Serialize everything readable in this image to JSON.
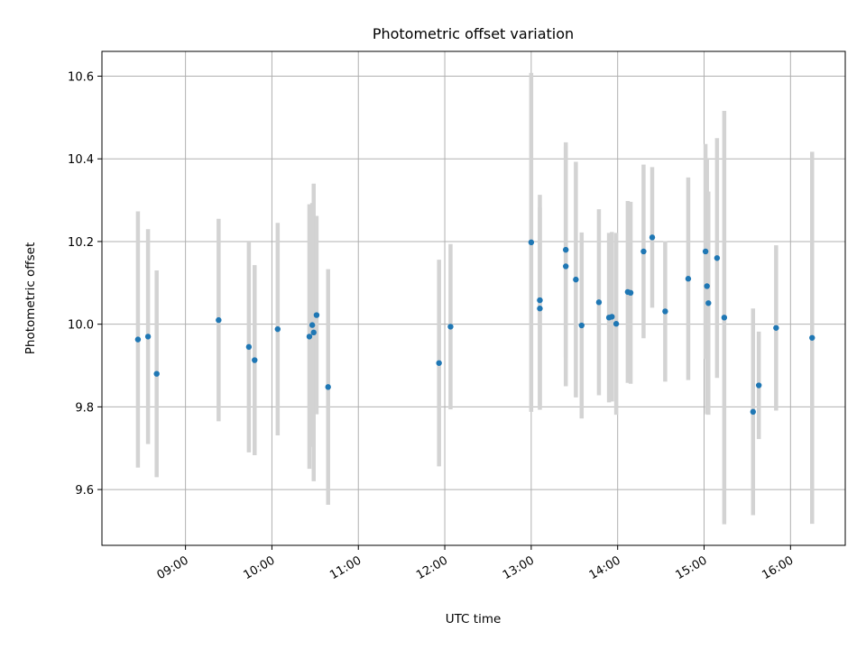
{
  "chart_data": {
    "type": "scatter",
    "title": "Photometric offset variation",
    "xlabel": "UTC time",
    "ylabel": "Photometric offset",
    "x_ticks": [
      "09:00",
      "10:00",
      "11:00",
      "12:00",
      "13:00",
      "14:00",
      "15:00",
      "16:00"
    ],
    "y_ticks": [
      "9.6",
      "9.8",
      "10.0",
      "10.2",
      "10.4",
      "10.6"
    ],
    "xlim": [
      "08:02",
      "16:38"
    ],
    "ylim": [
      9.465,
      10.66
    ],
    "grid": true,
    "colors": {
      "point": "#1f77b4",
      "errorbar": "#d3d3d3",
      "grid": "#b0b0b0",
      "axes": "#000000"
    },
    "points": [
      {
        "t": "08:27",
        "y": 9.963,
        "err": 0.31
      },
      {
        "t": "08:34",
        "y": 9.97,
        "err": 0.26
      },
      {
        "t": "08:40",
        "y": 9.88,
        "err": 0.25
      },
      {
        "t": "09:23",
        "y": 10.01,
        "err": 0.245
      },
      {
        "t": "09:44",
        "y": 9.945,
        "err": 0.255
      },
      {
        "t": "09:48",
        "y": 9.913,
        "err": 0.23
      },
      {
        "t": "10:04",
        "y": 9.988,
        "err": 0.257
      },
      {
        "t": "10:26",
        "y": 9.97,
        "err": 0.32
      },
      {
        "t": "10:28",
        "y": 9.998,
        "err": 0.295
      },
      {
        "t": "10:29",
        "y": 9.98,
        "err": 0.36
      },
      {
        "t": "10:31",
        "y": 10.022,
        "err": 0.24
      },
      {
        "t": "10:39",
        "y": 9.848,
        "err": 0.285
      },
      {
        "t": "11:56",
        "y": 9.906,
        "err": 0.25
      },
      {
        "t": "12:04",
        "y": 9.994,
        "err": 0.2
      },
      {
        "t": "13:00",
        "y": 10.198,
        "err": 0.41
      },
      {
        "t": "13:06",
        "y": 10.038,
        "err": 0.245
      },
      {
        "t": "13:06",
        "y": 10.058,
        "err": 0.255
      },
      {
        "t": "13:24",
        "y": 10.14,
        "err": 0.29
      },
      {
        "t": "13:24",
        "y": 10.18,
        "err": 0.26
      },
      {
        "t": "13:31",
        "y": 10.108,
        "err": 0.285
      },
      {
        "t": "13:35",
        "y": 9.997,
        "err": 0.225
      },
      {
        "t": "13:47",
        "y": 10.053,
        "err": 0.225
      },
      {
        "t": "13:54",
        "y": 10.016,
        "err": 0.205
      },
      {
        "t": "13:56",
        "y": 10.018,
        "err": 0.205
      },
      {
        "t": "13:59",
        "y": 10.001,
        "err": 0.22
      },
      {
        "t": "14:07",
        "y": 10.078,
        "err": 0.22
      },
      {
        "t": "14:09",
        "y": 10.076,
        "err": 0.22
      },
      {
        "t": "14:18",
        "y": 10.176,
        "err": 0.21
      },
      {
        "t": "14:24",
        "y": 10.21,
        "err": 0.17
      },
      {
        "t": "14:33",
        "y": 10.031,
        "err": 0.17
      },
      {
        "t": "14:49",
        "y": 10.11,
        "err": 0.245
      },
      {
        "t": "15:01",
        "y": 10.176,
        "err": 0.26
      },
      {
        "t": "15:02",
        "y": 10.092,
        "err": 0.31
      },
      {
        "t": "15:03",
        "y": 10.051,
        "err": 0.27
      },
      {
        "t": "15:09",
        "y": 10.16,
        "err": 0.29
      },
      {
        "t": "15:14",
        "y": 10.016,
        "err": 0.5
      },
      {
        "t": "15:34",
        "y": 9.788,
        "err": 0.25
      },
      {
        "t": "15:38",
        "y": 9.852,
        "err": 0.13
      },
      {
        "t": "15:50",
        "y": 9.991,
        "err": 0.2
      },
      {
        "t": "16:15",
        "y": 9.967,
        "err": 0.45
      }
    ]
  }
}
